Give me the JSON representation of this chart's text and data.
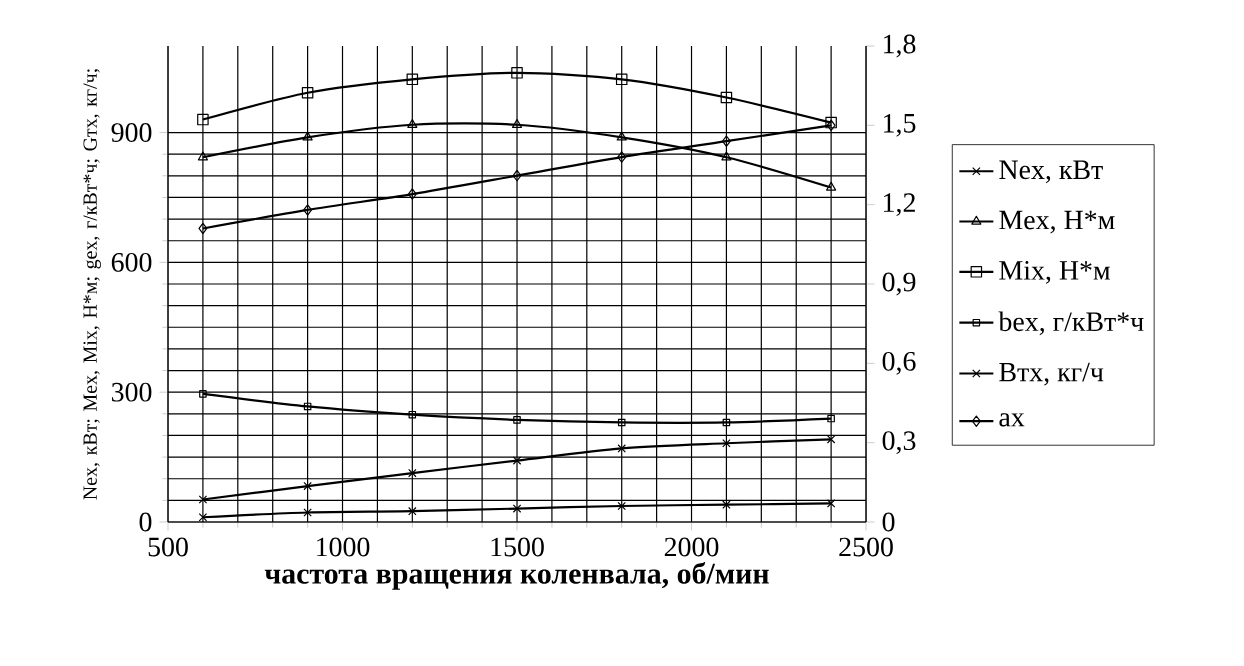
{
  "chart_data": {
    "type": "line",
    "xlabel": "**частота вращения коленвала, об/мин**",
    "ylabel": "Nex, кВт; Mex, Mix, Н*м; gex, г/кВт*ч; Gтх, кг/ч;",
    "x": [
      600,
      900,
      1200,
      1500,
      1800,
      2100,
      2400
    ],
    "series": [
      {
        "name": "Nex, кВт",
        "color": "#000000",
        "marker": "cross",
        "values": [
          52,
          83,
          113,
          142,
          170,
          182,
          191
        ]
      },
      {
        "name": "Mex, Н*м",
        "color": "#000000",
        "marker": "triangle",
        "values": [
          843,
          889,
          918,
          918,
          889,
          843,
          773
        ]
      },
      {
        "name": "Mix, Н*м",
        "color": "#000000",
        "marker": "square",
        "values": [
          930,
          992,
          1023,
          1038,
          1023,
          981,
          923
        ]
      },
      {
        "name": "bex, г/кВт*ч",
        "color": "#000000",
        "marker": "square",
        "values": [
          296,
          267,
          248,
          236,
          230,
          230,
          239
        ]
      },
      {
        "name": "Втх, кг/ч",
        "color": "#000000",
        "marker": "cross",
        "values": [
          11,
          22,
          25,
          31,
          37,
          40,
          43
        ]
      },
      {
        "name": "ax",
        "color": "#000000",
        "marker": "diamond",
        "axis": "y2",
        "values": [
          1.11,
          1.18,
          1.24,
          1.31,
          1.38,
          1.44,
          1.5
        ]
      }
    ],
    "xlim": [
      500,
      2500
    ],
    "xticks": [
      500,
      1000,
      1500,
      2000,
      2500
    ],
    "ylim": [
      0,
      1100
    ],
    "yticks": [
      0,
      300,
      600,
      900
    ],
    "y2lim": [
      0,
      1.8
    ],
    "y2ticks": [
      0,
      {
        "value": 0.3,
        "label": "0,3"
      },
      {
        "value": 0.6,
        "label": "0,6"
      },
      {
        "value": 0.9,
        "label": "0,9"
      },
      {
        "value": 1.2,
        "label": "1,2"
      },
      {
        "value": 1.5,
        "label": "1,5"
      },
      {
        "value": 1.8,
        "label": "1,8"
      }
    ],
    "grid": true,
    "legend": "right",
    "line_style": "solid"
  }
}
